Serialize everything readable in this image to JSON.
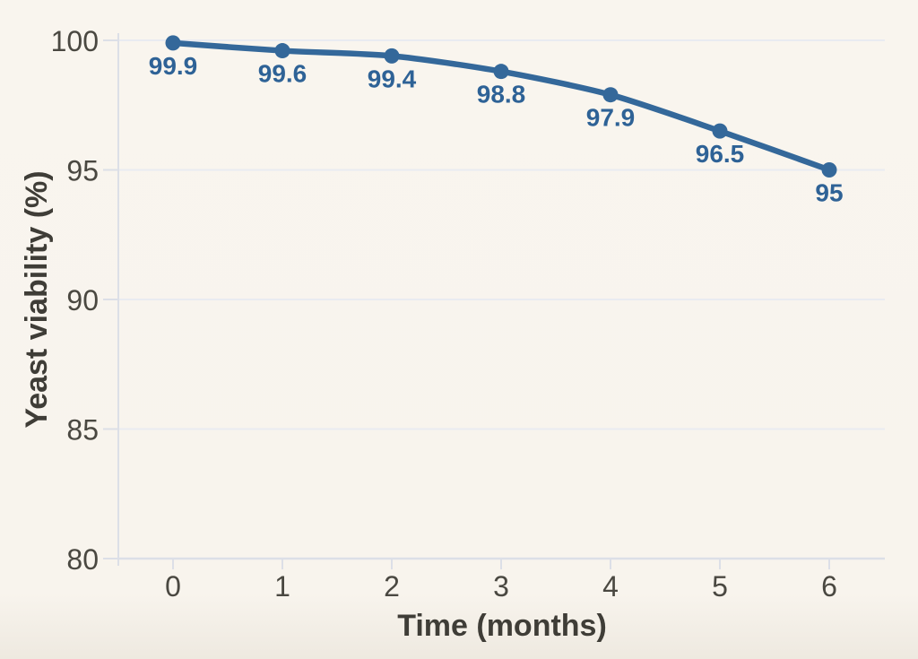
{
  "chart_data": {
    "type": "line",
    "x": [
      0,
      1,
      2,
      3,
      4,
      5,
      6
    ],
    "series": [
      {
        "name": "Yeast viability",
        "values": [
          99.9,
          99.6,
          99.4,
          98.8,
          97.9,
          96.5,
          95
        ]
      }
    ],
    "data_labels": [
      "99.9",
      "99.6",
      "99.4",
      "98.8",
      "97.9",
      "96.5",
      "95"
    ],
    "title": "",
    "xlabel": "Time (months)",
    "ylabel": "Yeast viability (%)",
    "ylim": [
      80,
      100
    ],
    "yticks": [
      80,
      85,
      90,
      95,
      100
    ],
    "xticks": [
      "0",
      "1",
      "2",
      "3",
      "4",
      "5",
      "6"
    ],
    "grid": "horizontal",
    "legend": "none",
    "colors": {
      "line": "#34689a",
      "marker": "#34689a",
      "data_label": "#2e6296",
      "gridline": "#e9ebf1",
      "axis_line": "#dcdfe7",
      "tick_mark": "#dcdfe7",
      "tick_label": "#4a4841",
      "axis_title": "#3f3d37",
      "background": "#f8f4ed"
    }
  }
}
